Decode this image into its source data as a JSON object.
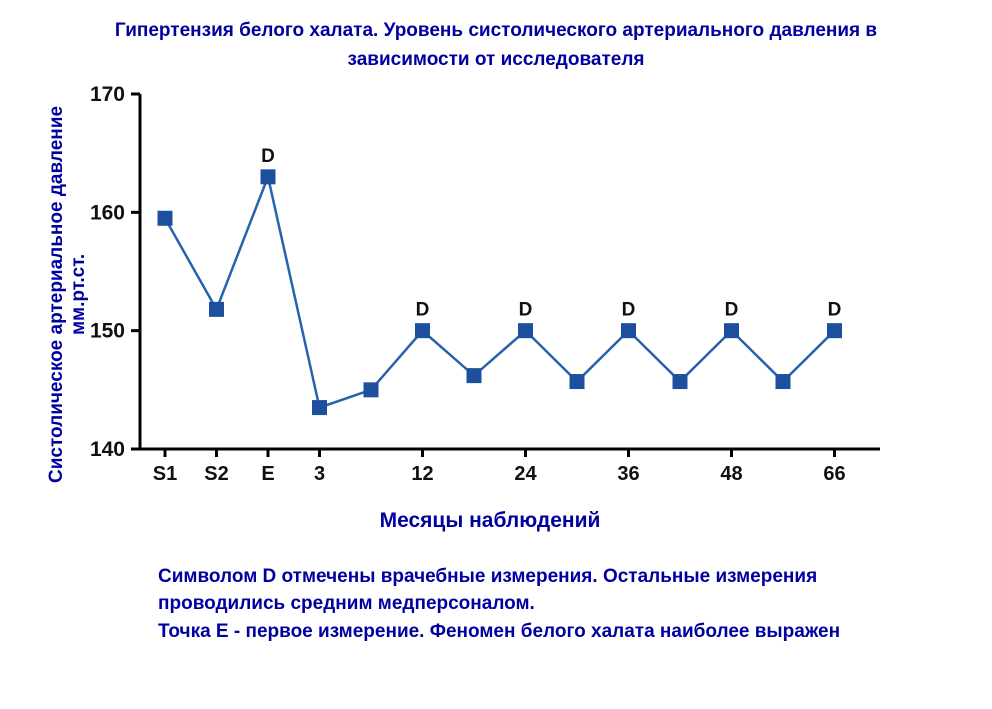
{
  "chart_data": {
    "type": "line",
    "title": "Гипертензия белого халата. Уровень систолического артериального давления в зависимости от исследователя",
    "ylabel": "Систолическое артериальное давление мм.рт.ст.",
    "xlabel": "Месяцы наблюдений",
    "ylim": [
      140,
      170
    ],
    "yticks": [
      140,
      150,
      160,
      170
    ],
    "marker_label": "D",
    "legend_note": "D = врачебные измерения; точки без метки = измерения среднего медперсонала",
    "points": [
      {
        "tick": "S1",
        "value": 159.5,
        "doctor": false
      },
      {
        "tick": "S2",
        "value": 151.8,
        "doctor": false
      },
      {
        "tick": "E",
        "value": 163.0,
        "doctor": true
      },
      {
        "tick": "3",
        "value": 143.5,
        "doctor": false
      },
      {
        "tick": "",
        "value": 145.0,
        "doctor": false
      },
      {
        "tick": "12",
        "value": 150.0,
        "doctor": true
      },
      {
        "tick": "",
        "value": 146.2,
        "doctor": false
      },
      {
        "tick": "24",
        "value": 150.0,
        "doctor": true
      },
      {
        "tick": "",
        "value": 145.7,
        "doctor": false
      },
      {
        "tick": "36",
        "value": 150.0,
        "doctor": true
      },
      {
        "tick": "",
        "value": 145.7,
        "doctor": false
      },
      {
        "tick": "48",
        "value": 150.0,
        "doctor": true
      },
      {
        "tick": "",
        "value": 145.7,
        "doctor": false
      },
      {
        "tick": "66",
        "value": 150.0,
        "doctor": true
      }
    ],
    "colors": {
      "line": "#2563ad",
      "marker": "#1c4f9e",
      "axis": "#000000",
      "heading_text": "#0000A0",
      "tick_text": "#111111"
    }
  },
  "caption": {
    "lines": [
      "Символом D отмечены врачебные измерения. Остальные измерения",
      "проводились средним медперсоналом.",
      "Точка Е - первое измерение. Феномен белого халата наиболее выражен"
    ]
  }
}
